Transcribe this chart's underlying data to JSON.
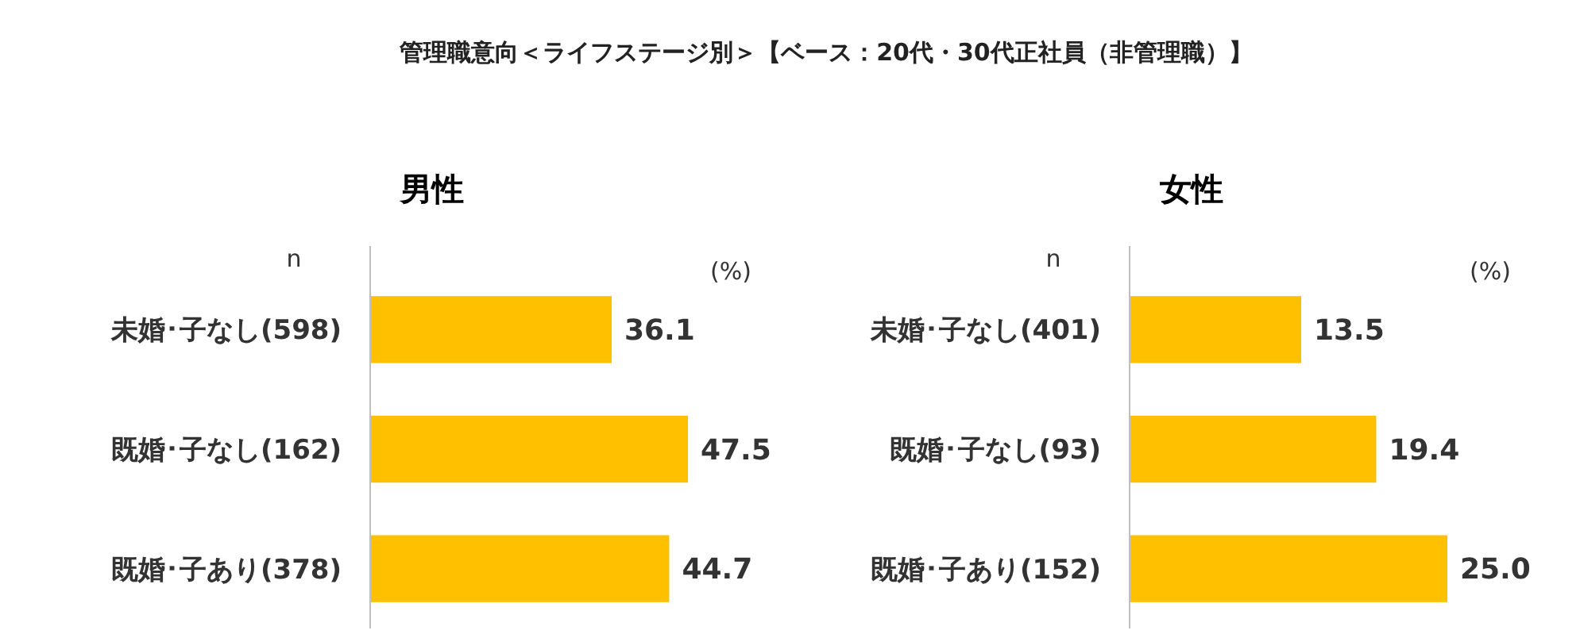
{
  "chart_data": [
    {
      "type": "bar",
      "orientation": "horizontal",
      "annotations": [
        "管理職意向＜ライフステージ別＞【ベース：20代・30代正社員（非管理職）】"
      ],
      "title": "男性",
      "ylabel": "n",
      "xlabel": "(%)",
      "categories": [
        "未婚･子なし(598)",
        "既婚･子なし(162)",
        "既婚･子あり(378)"
      ],
      "values": [
        36.1,
        47.5,
        44.7
      ],
      "color": "#ffc000",
      "data_labels": true
    },
    {
      "type": "bar",
      "orientation": "horizontal",
      "title": "女性",
      "ylabel": "n",
      "xlabel": "(%)",
      "categories": [
        "未婚･子なし(401)",
        "既婚･子なし(93)",
        "既婚･子あり(152)"
      ],
      "values": [
        13.5,
        19.4,
        25.0
      ],
      "value_labels": [
        "13.5",
        "19.4",
        "25.0"
      ],
      "color": "#ffc000"
    }
  ]
}
